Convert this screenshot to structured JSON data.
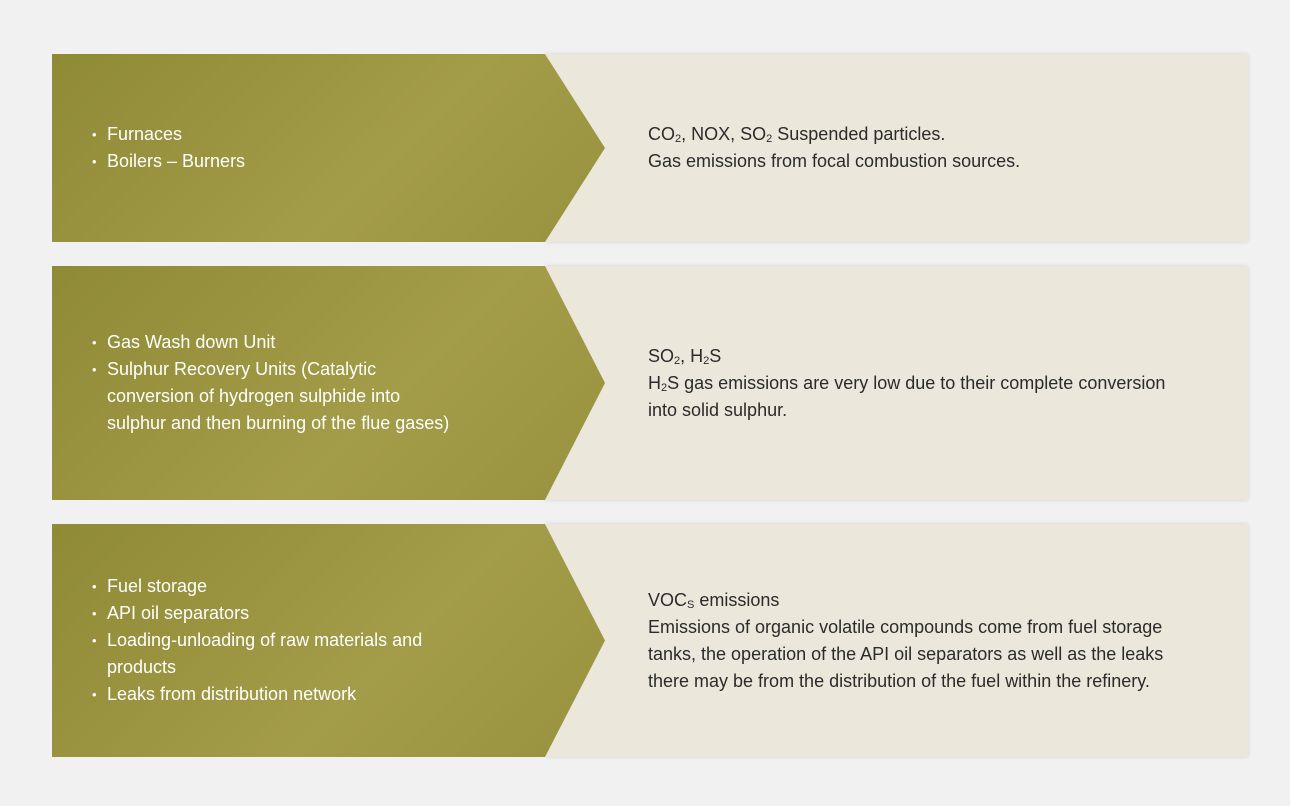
{
  "rows": [
    {
      "sources": [
        "Furnaces",
        "Boilers – Burners"
      ],
      "emissions": [
        [
          {
            "text": "CO"
          },
          {
            "sub": "2"
          },
          {
            "text": ", NOX, SO"
          },
          {
            "sub": "2"
          },
          {
            "text": " Suspended particles."
          }
        ],
        [
          {
            "text": "Gas emissions from focal combustion sources."
          }
        ]
      ]
    },
    {
      "sources": [
        "Gas Wash down Unit",
        "Sulphur Recovery Units (Catalytic conversion of hydrogen sulphide into sulphur and then burning of the flue gases)"
      ],
      "emissions": [
        [
          {
            "text": "SO"
          },
          {
            "sub": "2"
          },
          {
            "text": ", H"
          },
          {
            "sub": "2"
          },
          {
            "text": "S"
          }
        ],
        [
          {
            "text": "H"
          },
          {
            "sub": "2"
          },
          {
            "text": "S gas emissions are very low due to their complete conversion into solid sulphur."
          }
        ]
      ]
    },
    {
      "sources": [
        "Fuel storage",
        "API oil separators",
        "Loading-unloading of raw materials and products",
        "Leaks from distribution network"
      ],
      "emissions": [
        [
          {
            "text": "VOC"
          },
          {
            "sub": "S"
          },
          {
            "text": " emissions"
          }
        ],
        [
          {
            "text": "Emissions of organic volatile compounds come from fuel storage tanks, the operation of the API oil separators as well as the leaks there may be from the distribution of the fuel within the refinery."
          }
        ]
      ]
    }
  ]
}
